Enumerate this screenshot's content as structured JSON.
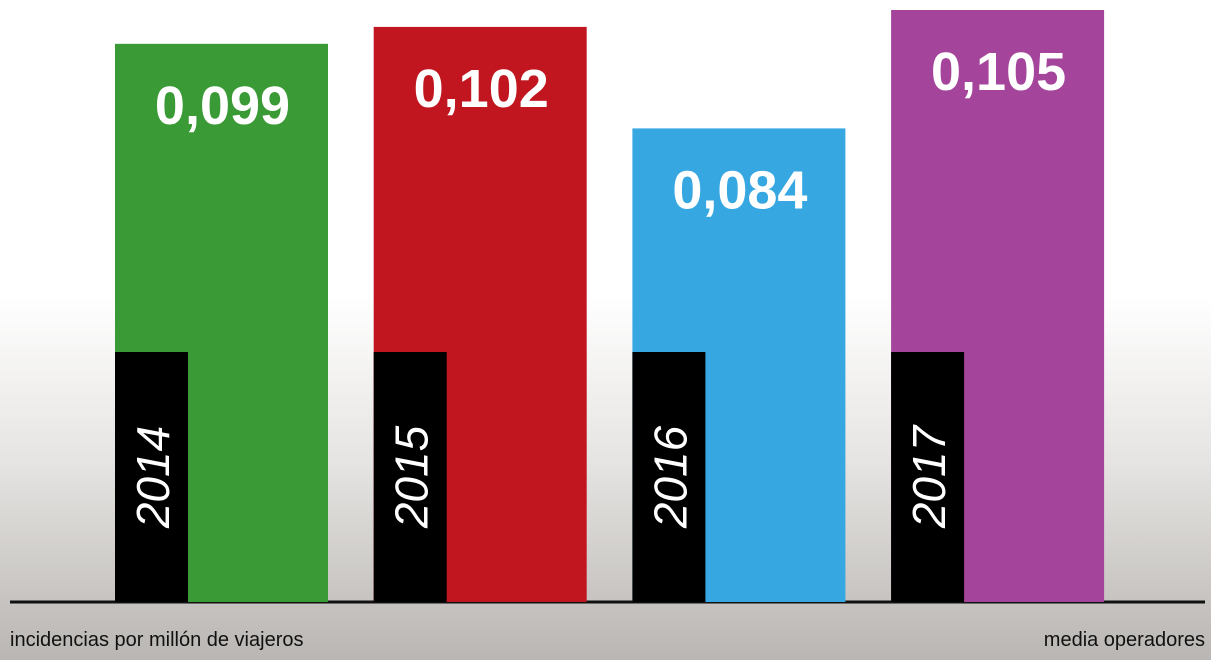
{
  "chart_data": {
    "type": "bar",
    "categories": [
      "2014",
      "2015",
      "2016",
      "2017"
    ],
    "values": [
      0.099,
      0.102,
      0.084,
      0.105
    ],
    "value_labels": [
      "0,099",
      "0,102",
      "0,084",
      "0,105"
    ],
    "colors": [
      "#3a9a35",
      "#c1161f",
      "#36a7e1",
      "#a4449b"
    ],
    "x_label": "incidencias por millón de viajeros",
    "annotation": "media operadores"
  }
}
